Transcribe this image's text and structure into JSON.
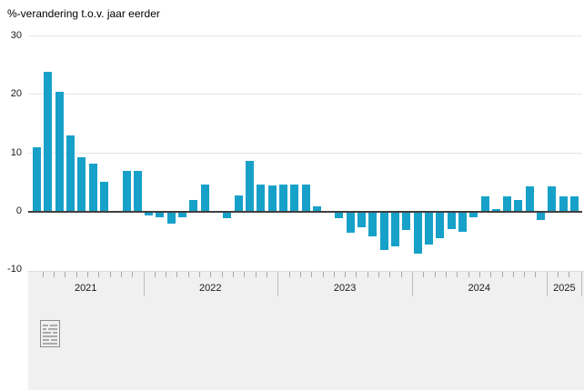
{
  "chart_data": {
    "type": "bar",
    "title": "%-verandering t.o.v. jaar eerder",
    "unit": "%",
    "x_start": "2021-03",
    "x_end": "2025-03",
    "frequency": "monthly",
    "ylim": [
      -10,
      30
    ],
    "yticks": [
      "30",
      "20",
      "10",
      "0",
      "-10"
    ],
    "ytick_values": [
      30,
      20,
      10,
      0,
      -10
    ],
    "grid": true,
    "legend": "none",
    "year_labels": [
      "2021",
      "2022",
      "2023",
      "2024",
      "2025"
    ],
    "bars_per_year": [
      10,
      12,
      12,
      12,
      3
    ],
    "values": [
      11,
      24,
      20.5,
      13,
      9.3,
      8.3,
      5.2,
      0,
      7,
      7,
      -0.5,
      -0.8,
      -1.8,
      -0.7,
      2,
      4.7,
      0,
      -1,
      2.8,
      8.7,
      4.7,
      4.5,
      4.7,
      4.7,
      4.7,
      1,
      0,
      -1,
      -3.4,
      -2.5,
      -4,
      -6.3,
      -5.7,
      -2.9,
      -7,
      -5.4,
      -4.4,
      -2.8,
      -3.3,
      -0.8,
      2.6,
      0.4,
      2.7,
      2.1,
      4.3,
      -1.3,
      4.4,
      2.6,
      2.7
    ]
  },
  "colors": {
    "bar": "#17a1c9",
    "zero_line": "#3f3f3f",
    "gridline": "#e5e5e5",
    "axis_band_bg": "#f0f0f0",
    "tick": "#a8a8a8",
    "year_divider": "#bdbdbd",
    "label_text": "#1a1a1a",
    "logo_gray": "#8c8c8c"
  },
  "footer": {
    "logo": "cbs-logo"
  }
}
